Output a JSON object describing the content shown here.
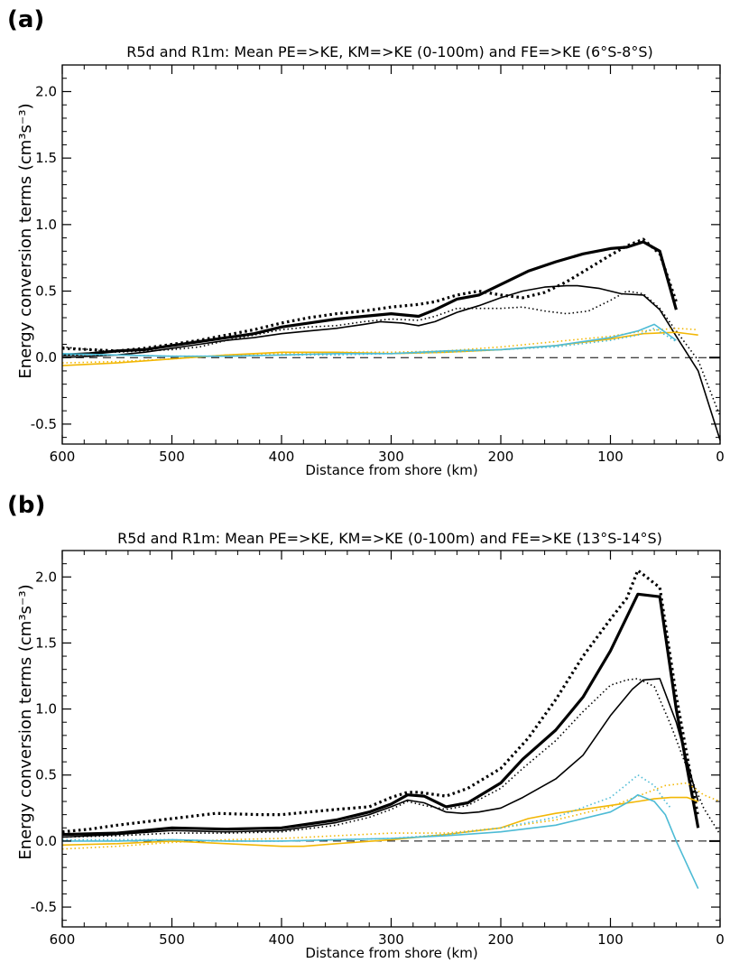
{
  "chart_data": [
    {
      "panel_label": "(a)",
      "type": "line",
      "title": "R5d and R1m: Mean PE=>KE, KM=>KE (0-100m) and FE=>KE (6°S-8°S)",
      "xlabel": "Distance from shore (km)",
      "ylabel": "Energy conversion terms (cm³s⁻³)",
      "xlim": [
        600,
        0
      ],
      "ylim": [
        -0.65,
        2.2
      ],
      "x_ticks": [
        600,
        500,
        400,
        300,
        200,
        100,
        0
      ],
      "y_ticks": [
        -0.5,
        0.0,
        0.5,
        1.0,
        1.5,
        2.0
      ],
      "x_tick_labels": [
        "600",
        "500",
        "400",
        "300",
        "200",
        "100",
        "0"
      ],
      "y_tick_labels": [
        "-0.5",
        "0.0",
        "0.5",
        "1.0",
        "1.5",
        "2.0"
      ],
      "zero_line": true,
      "grid": false,
      "legend": "none",
      "colors": {
        "black": "#000000",
        "yellow": "#f2b705",
        "cyan": "#4dbbd5"
      },
      "series": [
        {
          "color": "#000000",
          "style": "solid",
          "width": 3.2,
          "x": [
            600,
            575,
            550,
            525,
            500,
            475,
            450,
            425,
            400,
            375,
            350,
            325,
            300,
            275,
            260,
            240,
            220,
            200,
            175,
            150,
            125,
            100,
            85,
            70,
            55,
            40
          ],
          "y": [
            0.02,
            0.03,
            0.05,
            0.06,
            0.09,
            0.12,
            0.15,
            0.18,
            0.23,
            0.26,
            0.29,
            0.31,
            0.33,
            0.31,
            0.36,
            0.44,
            0.47,
            0.55,
            0.65,
            0.72,
            0.78,
            0.82,
            0.83,
            0.87,
            0.8,
            0.36
          ]
        },
        {
          "color": "#000000",
          "style": "dotted",
          "width": 3.2,
          "x": [
            600,
            575,
            550,
            525,
            500,
            475,
            450,
            425,
            400,
            375,
            350,
            325,
            300,
            275,
            260,
            240,
            220,
            200,
            180,
            160,
            140,
            120,
            100,
            85,
            70,
            55,
            40
          ],
          "y": [
            0.07,
            0.06,
            0.05,
            0.07,
            0.1,
            0.13,
            0.17,
            0.21,
            0.26,
            0.3,
            0.33,
            0.35,
            0.38,
            0.4,
            0.42,
            0.47,
            0.5,
            0.47,
            0.45,
            0.49,
            0.57,
            0.67,
            0.77,
            0.84,
            0.89,
            0.78,
            0.42
          ]
        },
        {
          "color": "#000000",
          "style": "solid",
          "width": 1.6,
          "x": [
            600,
            575,
            550,
            525,
            500,
            475,
            450,
            425,
            400,
            375,
            350,
            325,
            310,
            290,
            275,
            260,
            240,
            220,
            200,
            180,
            160,
            140,
            130,
            110,
            90,
            70,
            55,
            40,
            20,
            0
          ],
          "y": [
            0.0,
            0.01,
            0.02,
            0.04,
            0.07,
            0.1,
            0.13,
            0.15,
            0.18,
            0.2,
            0.22,
            0.25,
            0.27,
            0.26,
            0.24,
            0.27,
            0.34,
            0.39,
            0.45,
            0.5,
            0.53,
            0.54,
            0.54,
            0.52,
            0.48,
            0.47,
            0.36,
            0.16,
            -0.1,
            -0.62
          ]
        },
        {
          "color": "#000000",
          "style": "dotted",
          "width": 1.6,
          "x": [
            600,
            575,
            550,
            525,
            500,
            475,
            450,
            425,
            400,
            375,
            350,
            325,
            300,
            275,
            260,
            240,
            220,
            200,
            180,
            160,
            140,
            120,
            100,
            85,
            70,
            55,
            40,
            20,
            0
          ],
          "y": [
            0.08,
            0.06,
            0.04,
            0.05,
            0.06,
            0.08,
            0.13,
            0.17,
            0.21,
            0.23,
            0.24,
            0.27,
            0.29,
            0.28,
            0.31,
            0.37,
            0.37,
            0.37,
            0.38,
            0.35,
            0.33,
            0.35,
            0.43,
            0.5,
            0.48,
            0.37,
            0.2,
            -0.02,
            -0.44
          ]
        },
        {
          "color": "#f2b705",
          "style": "solid",
          "width": 1.6,
          "x": [
            600,
            550,
            500,
            450,
            400,
            350,
            300,
            250,
            200,
            150,
            100,
            70,
            40,
            20
          ],
          "y": [
            -0.06,
            -0.04,
            -0.01,
            0.02,
            0.04,
            0.04,
            0.03,
            0.04,
            0.06,
            0.09,
            0.14,
            0.18,
            0.19,
            0.17
          ]
        },
        {
          "color": "#f2b705",
          "style": "dotted",
          "width": 1.6,
          "x": [
            600,
            550,
            500,
            450,
            400,
            350,
            300,
            250,
            200,
            150,
            100,
            70,
            40,
            20
          ],
          "y": [
            -0.04,
            -0.03,
            -0.01,
            0.02,
            0.03,
            0.04,
            0.04,
            0.05,
            0.08,
            0.12,
            0.16,
            0.2,
            0.22,
            0.21
          ]
        },
        {
          "color": "#4dbbd5",
          "style": "solid",
          "width": 1.6,
          "x": [
            600,
            550,
            500,
            450,
            400,
            350,
            300,
            250,
            200,
            150,
            100,
            75,
            60,
            50,
            40
          ],
          "y": [
            0.03,
            0.02,
            0.01,
            0.01,
            0.02,
            0.03,
            0.03,
            0.05,
            0.06,
            0.09,
            0.15,
            0.2,
            0.25,
            0.19,
            0.13
          ]
        },
        {
          "color": "#4dbbd5",
          "style": "dotted",
          "width": 1.6,
          "x": [
            600,
            550,
            500,
            450,
            400,
            350,
            300,
            250,
            200,
            150,
            100,
            75,
            60,
            50,
            40
          ],
          "y": [
            0.02,
            0.02,
            0.01,
            0.01,
            0.02,
            0.02,
            0.03,
            0.04,
            0.06,
            0.08,
            0.13,
            0.17,
            0.22,
            0.17,
            0.12
          ]
        }
      ]
    },
    {
      "panel_label": "(b)",
      "type": "line",
      "title": "R5d and R1m: Mean PE=>KE, KM=>KE (0-100m) and FE=>KE (13°S-14°S)",
      "xlabel": "Distance from shore (km)",
      "ylabel": "Energy conversion terms (cm³s⁻³)",
      "xlim": [
        600,
        0
      ],
      "ylim": [
        -0.65,
        2.2
      ],
      "x_ticks": [
        600,
        500,
        400,
        300,
        200,
        100,
        0
      ],
      "y_ticks": [
        -0.5,
        0.0,
        0.5,
        1.0,
        1.5,
        2.0
      ],
      "x_tick_labels": [
        "600",
        "500",
        "400",
        "300",
        "200",
        "100",
        "0"
      ],
      "y_tick_labels": [
        "-0.5",
        "0.0",
        "0.5",
        "1.0",
        "1.5",
        "2.0"
      ],
      "zero_line": true,
      "grid": false,
      "legend": "none",
      "colors": {
        "black": "#000000",
        "yellow": "#f2b705",
        "cyan": "#4dbbd5"
      },
      "series": [
        {
          "color": "#000000",
          "style": "solid",
          "width": 3.2,
          "x": [
            600,
            550,
            500,
            450,
            400,
            350,
            320,
            300,
            285,
            270,
            250,
            230,
            200,
            180,
            150,
            125,
            100,
            75,
            55,
            40,
            20
          ],
          "y": [
            0.05,
            0.06,
            0.1,
            0.09,
            0.1,
            0.16,
            0.22,
            0.28,
            0.35,
            0.34,
            0.26,
            0.29,
            0.44,
            0.62,
            0.84,
            1.09,
            1.44,
            1.87,
            1.85,
            1.0,
            0.1
          ]
        },
        {
          "color": "#000000",
          "style": "dotted",
          "width": 3.2,
          "x": [
            600,
            575,
            550,
            500,
            460,
            420,
            400,
            350,
            320,
            300,
            285,
            275,
            250,
            230,
            200,
            175,
            150,
            125,
            100,
            85,
            75,
            55,
            40,
            20
          ],
          "y": [
            0.07,
            0.09,
            0.12,
            0.17,
            0.21,
            0.2,
            0.2,
            0.24,
            0.26,
            0.33,
            0.37,
            0.37,
            0.34,
            0.4,
            0.55,
            0.78,
            1.07,
            1.4,
            1.68,
            1.84,
            2.05,
            1.92,
            1.1,
            0.18
          ]
        },
        {
          "color": "#000000",
          "style": "solid",
          "width": 1.6,
          "x": [
            600,
            550,
            500,
            450,
            400,
            350,
            320,
            300,
            285,
            270,
            250,
            235,
            220,
            200,
            180,
            150,
            125,
            100,
            80,
            70,
            55,
            40,
            20
          ],
          "y": [
            0.03,
            0.05,
            0.08,
            0.07,
            0.08,
            0.14,
            0.2,
            0.26,
            0.31,
            0.29,
            0.22,
            0.21,
            0.22,
            0.25,
            0.33,
            0.47,
            0.65,
            0.95,
            1.15,
            1.22,
            1.23,
            0.9,
            0.3
          ]
        },
        {
          "color": "#000000",
          "style": "dotted",
          "width": 1.6,
          "x": [
            600,
            550,
            500,
            450,
            400,
            350,
            320,
            300,
            285,
            270,
            250,
            230,
            200,
            180,
            150,
            125,
            110,
            100,
            85,
            75,
            60,
            45,
            30,
            15,
            0
          ],
          "y": [
            0.03,
            0.04,
            0.06,
            0.06,
            0.07,
            0.12,
            0.18,
            0.24,
            0.3,
            0.27,
            0.24,
            0.27,
            0.4,
            0.55,
            0.76,
            0.98,
            1.1,
            1.18,
            1.22,
            1.23,
            1.17,
            0.88,
            0.55,
            0.25,
            0.05
          ]
        },
        {
          "color": "#f2b705",
          "style": "solid",
          "width": 1.6,
          "x": [
            600,
            550,
            500,
            450,
            400,
            380,
            350,
            300,
            250,
            200,
            175,
            150,
            125,
            100,
            75,
            60,
            45,
            30,
            20
          ],
          "y": [
            -0.03,
            -0.02,
            0.0,
            -0.02,
            -0.04,
            -0.04,
            -0.02,
            0.01,
            0.05,
            0.1,
            0.17,
            0.21,
            0.24,
            0.27,
            0.3,
            0.32,
            0.33,
            0.33,
            0.3
          ]
        },
        {
          "color": "#f2b705",
          "style": "dotted",
          "width": 1.6,
          "x": [
            600,
            550,
            500,
            450,
            400,
            350,
            300,
            250,
            200,
            150,
            100,
            75,
            50,
            30,
            15,
            0
          ],
          "y": [
            -0.06,
            -0.04,
            -0.01,
            0.01,
            0.02,
            0.04,
            0.06,
            0.06,
            0.1,
            0.16,
            0.26,
            0.34,
            0.42,
            0.44,
            0.35,
            0.3
          ]
        },
        {
          "color": "#4dbbd5",
          "style": "solid",
          "width": 1.6,
          "x": [
            600,
            550,
            500,
            450,
            400,
            350,
            300,
            250,
            200,
            150,
            100,
            85,
            75,
            60,
            50,
            40,
            30,
            20
          ],
          "y": [
            0.0,
            0.0,
            0.01,
            0.0,
            0.0,
            0.01,
            0.02,
            0.04,
            0.07,
            0.12,
            0.22,
            0.29,
            0.35,
            0.3,
            0.2,
            0.0,
            -0.18,
            -0.36
          ]
        },
        {
          "color": "#4dbbd5",
          "style": "dotted",
          "width": 1.6,
          "x": [
            600,
            550,
            500,
            450,
            400,
            350,
            300,
            250,
            200,
            150,
            100,
            85,
            75,
            60,
            50,
            45
          ],
          "y": [
            0.01,
            0.01,
            0.01,
            0.0,
            0.0,
            0.01,
            0.02,
            0.05,
            0.1,
            0.18,
            0.33,
            0.43,
            0.5,
            0.42,
            0.3,
            0.25
          ]
        }
      ]
    }
  ]
}
